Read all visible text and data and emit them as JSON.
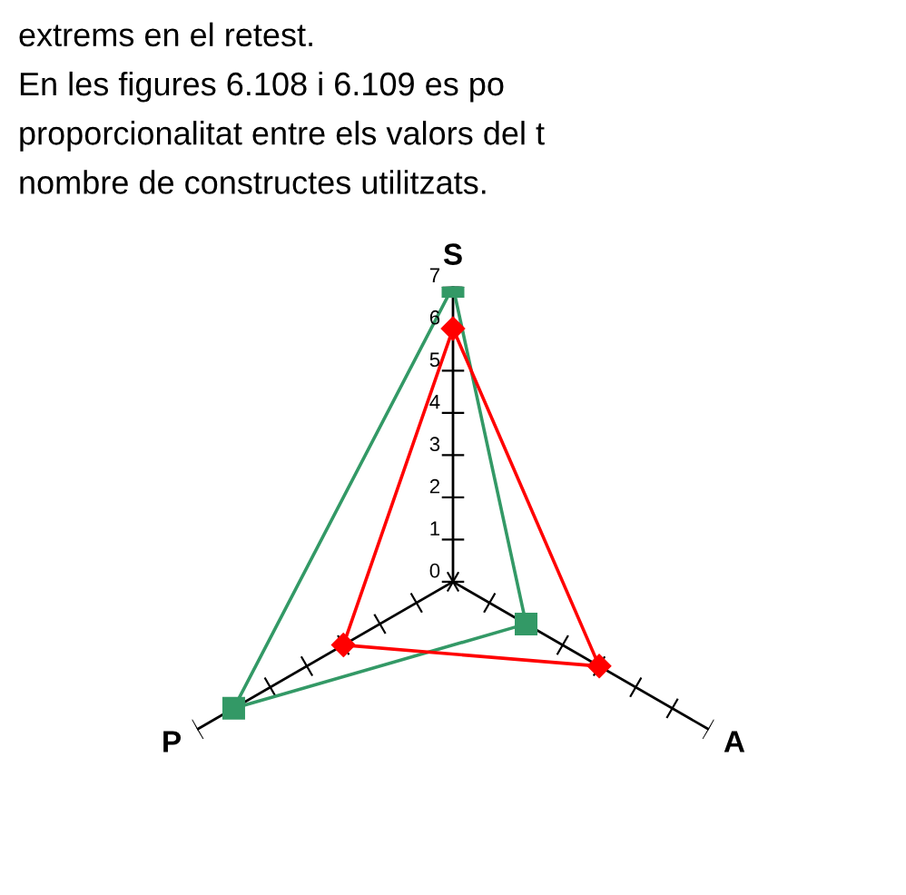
{
  "chart_data": {
    "type": "radar",
    "categories": [
      "S",
      "A",
      "P"
    ],
    "series": [
      {
        "color": "#339966",
        "marker": "square",
        "values": [
          7,
          2,
          6
        ]
      },
      {
        "color": "#ff0000",
        "marker": "diamond",
        "values": [
          6,
          4,
          3
        ]
      }
    ],
    "ylim": [
      0,
      7
    ],
    "yticks": [
      0,
      1,
      2,
      3,
      4,
      5,
      6,
      7
    ],
    "annotations": [
      "extrems en el retest.",
      "En les figures 6.108 i 6.109 es po",
      "proporcionalitat entre els valors del t",
      "nombre de constructes utilitzats."
    ]
  }
}
